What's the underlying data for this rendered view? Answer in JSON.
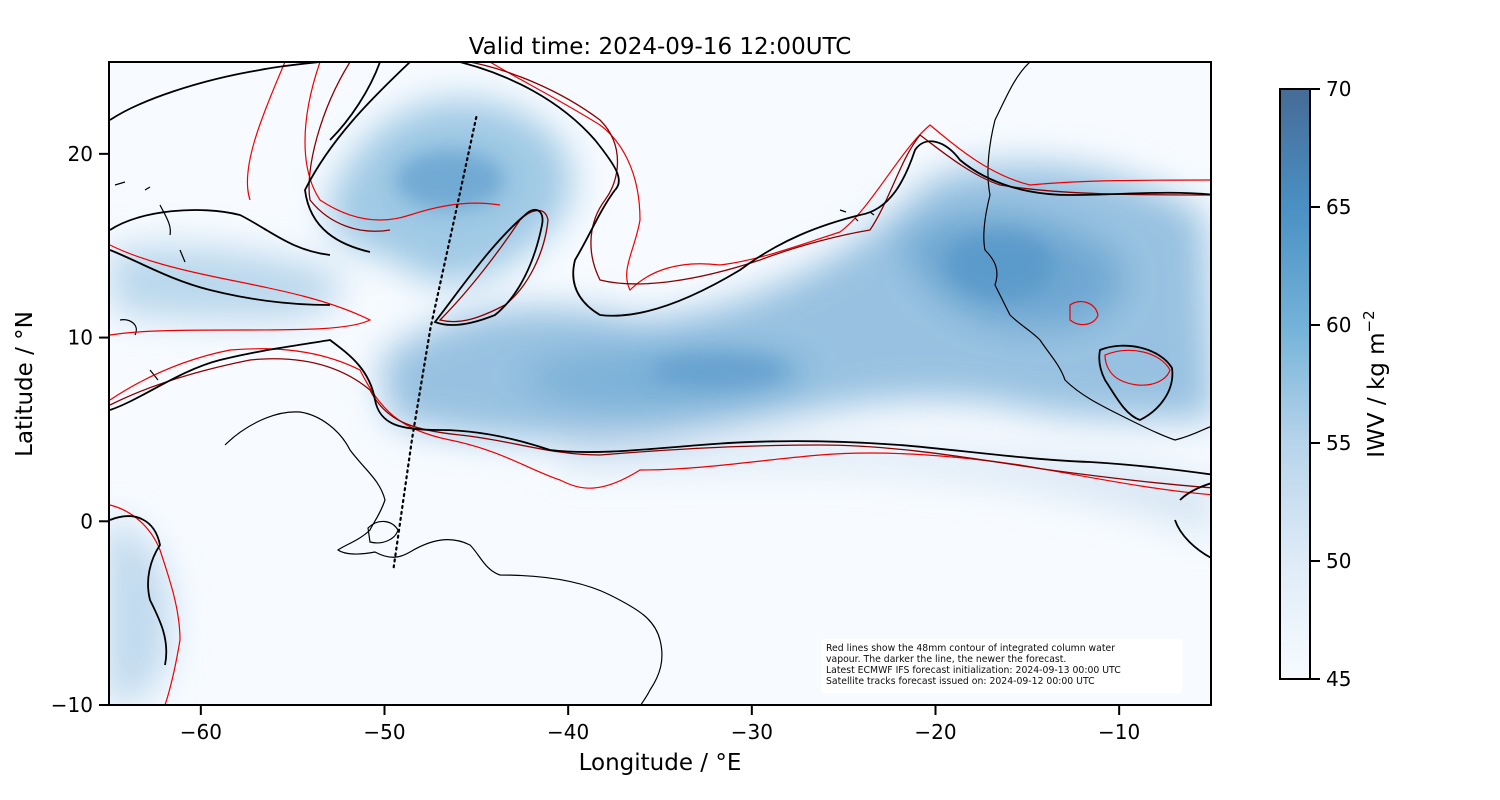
{
  "title": "Valid time: 2024-09-16 12:00UTC",
  "xlabel": "Longitude / °E",
  "ylabel": "Latitude / °N",
  "map": {
    "extent": {
      "lon": [
        -65,
        -5
      ],
      "lat": [
        -10,
        25
      ]
    },
    "x_ticks": [
      -60,
      -50,
      -40,
      -30,
      -20,
      -10
    ],
    "y_ticks": [
      -10,
      0,
      10,
      20
    ],
    "x_tick_labels": [
      "−60",
      "−50",
      "−40",
      "−30",
      "−20",
      "−10"
    ],
    "y_tick_labels": [
      "−10",
      "0",
      "10",
      "20"
    ],
    "colormap": "Blues",
    "contour_colors": {
      "oldest": "#ee0000",
      "middle": "#8b0000",
      "newest": "#000000"
    },
    "coastline_color": "#000000",
    "satellite_track": [
      [
        -45,
        22
      ],
      [
        -46.3,
        16
      ],
      [
        -47.5,
        10.5
      ],
      [
        -48.5,
        4.5
      ],
      [
        -49.5,
        -2.5
      ]
    ],
    "contour_threshold_mm": 48
  },
  "colorbar": {
    "label_main": "IWV / kg m",
    "label_exp": "−2",
    "range": [
      45,
      70
    ],
    "ticks": [
      45,
      50,
      55,
      60,
      65,
      70
    ],
    "tick_labels": [
      "45",
      "50",
      "55",
      "60",
      "65",
      "70"
    ]
  },
  "note": {
    "line1": "Red lines show the 48mm contour of integrated column water",
    "line2": "vapour. The darker the line, the newer the forecast.",
    "line3": "Latest ECMWF IFS forecast initialization: 2024-09-13 00:00 UTC",
    "line4": "Satellite tracks forecast issued on: 2024-09-12 00:00 UTC"
  }
}
